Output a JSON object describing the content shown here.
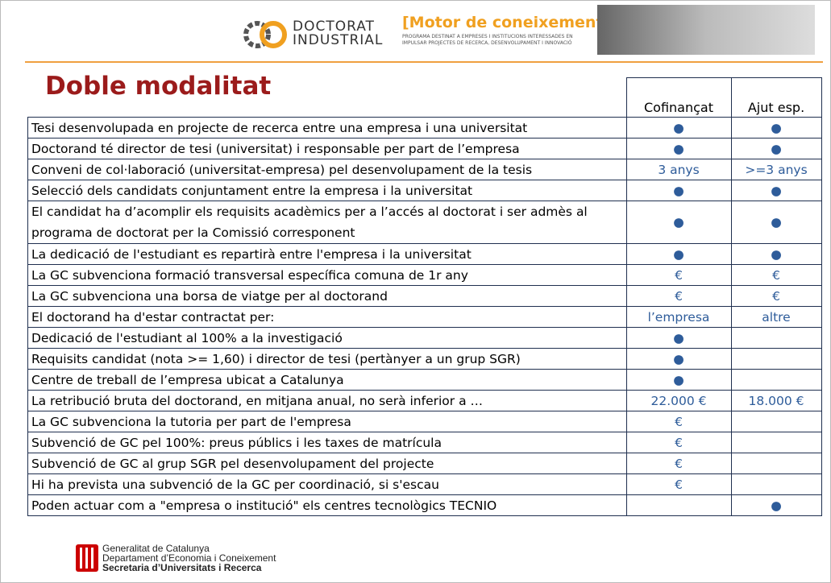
{
  "header": {
    "logo_line1": "DOCTORAT",
    "logo_line2": "INDUSTRIAL",
    "motto": "[Motor de coneixement]",
    "motto_sub1": "PROGRAMA DESTINAT A EMPRESES I INSTITUCIONS INTERESSADES EN",
    "motto_sub2": "IMPULSAR PROJECTES DE RECERCA, DESENVOLUPAMENT I INNOVACIÓ"
  },
  "title": "Doble modalitat",
  "table": {
    "columns": [
      "Cofinançat",
      "Ajut esp."
    ],
    "rows": [
      [
        "Tesi desenvolupada en projecte de recerca entre una empresa i una universitat",
        "●",
        "●"
      ],
      [
        "Doctorand té director de tesi (universitat) i responsable per part de l’empresa",
        "●",
        "●"
      ],
      [
        "Conveni de col·laboració (universitat-empresa) pel desenvolupament de la tesis",
        "3 anys",
        ">=3 anys"
      ],
      [
        "Selecció dels candidats conjuntament entre la empresa i la universitat",
        "●",
        "●"
      ],
      [
        "El candidat ha d’acomplir els requisits acadèmics per a l’accés al doctorat i ser admès al programa de doctorat per la Comissió corresponent",
        "●",
        "●"
      ],
      [
        "La dedicació de l'estudiant es repartirà entre l'empresa i la universitat",
        "●",
        "●"
      ],
      [
        "La GC subvenciona formació transversal específica comuna de 1r any",
        "€",
        "€"
      ],
      [
        "La GC subvenciona una borsa de viatge per al doctorand",
        "€",
        "€"
      ],
      [
        "El doctorand ha d'estar contractat per:",
        "l’empresa",
        "altre"
      ],
      [
        "Dedicació de l'estudiant al 100% a la investigació",
        "●",
        null
      ],
      [
        "Requisits candidat (nota >= 1,60) i director de tesi (pertànyer a un grup SGR)",
        "●",
        null
      ],
      [
        "Centre de treball de l’empresa ubicat a Catalunya",
        "●",
        null
      ],
      [
        "La retribució bruta del doctorand, en mitjana anual, no serà inferior a …",
        "22.000 €",
        "18.000 €"
      ],
      [
        "La GC subvenciona la tutoria per part de l'empresa",
        "€",
        null
      ],
      [
        "Subvenció de GC  pel 100%: preus públics i les taxes de matrícula",
        "€",
        null
      ],
      [
        "Subvenció de GC al grup SGR pel desenvolupament del projecte",
        "€",
        null
      ],
      [
        "Hi ha prevista una subvenció de la GC per coordinació, si s'escau",
        "€",
        null
      ],
      [
        "Poden actuar com a \"empresa o institució\" els centres tecnològics TECNIO",
        null,
        "●"
      ]
    ]
  },
  "footer": {
    "line1": "Generalitat de Catalunya",
    "line2": "Departament d’Economia i Coneixement",
    "line3": "Secretaria d’Universitats i Recerca"
  }
}
